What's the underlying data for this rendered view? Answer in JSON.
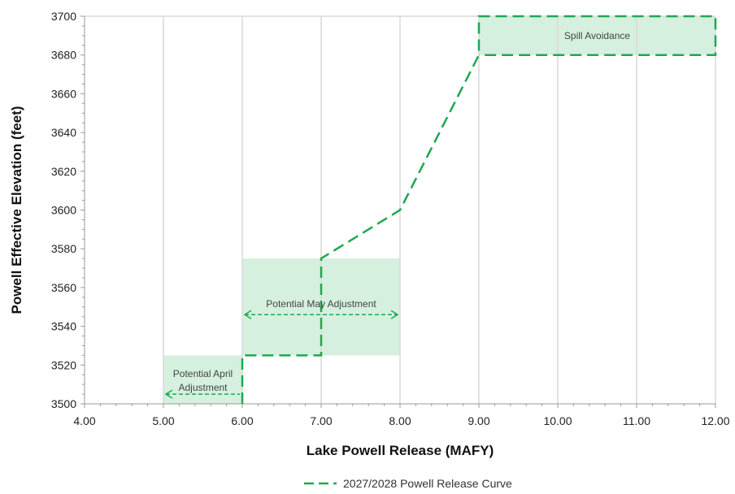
{
  "chart_data": {
    "type": "line",
    "xlabel": "Lake Powell Release (MAFY)",
    "ylabel": "Powell Effective Elevation (feet)",
    "xlim": [
      4,
      12
    ],
    "ylim": [
      3500,
      3700
    ],
    "x_ticks": [
      "4.00",
      "5.00",
      "6.00",
      "7.00",
      "8.00",
      "9.00",
      "10.00",
      "11.00",
      "12.00"
    ],
    "y_ticks": [
      "3500",
      "3520",
      "3540",
      "3560",
      "3580",
      "3600",
      "3620",
      "3640",
      "3660",
      "3680",
      "3700"
    ],
    "grid": "vertical",
    "series": [
      {
        "name": "2027/2028 Powell Release Curve",
        "style": "dashed",
        "color": "#1fa84f",
        "points": [
          [
            6.0,
            3500
          ],
          [
            6.0,
            3525
          ],
          [
            7.0,
            3525
          ],
          [
            7.0,
            3575
          ],
          [
            8.0,
            3600
          ],
          [
            9.0,
            3680
          ],
          [
            9.0,
            3700
          ],
          [
            12.0,
            3700
          ],
          [
            12.0,
            3680
          ],
          [
            9.0,
            3680
          ]
        ]
      }
    ],
    "regions": [
      {
        "label": "Potential April Adjustment",
        "x": [
          5.0,
          6.0
        ],
        "y": [
          3500,
          3525
        ]
      },
      {
        "label": "Potential May Adjustment",
        "x": [
          6.0,
          8.0
        ],
        "y": [
          3525,
          3575
        ]
      },
      {
        "label": "Spill Avoidance",
        "x": [
          9.0,
          12.0
        ],
        "y": [
          3680,
          3700
        ]
      }
    ],
    "arrows": [
      {
        "from": [
          6.0,
          3505
        ],
        "to": [
          5.0,
          3505
        ],
        "direction": "left"
      },
      {
        "from": [
          6.0,
          3546
        ],
        "to": [
          8.0,
          3546
        ],
        "direction": "both"
      }
    ],
    "legend_position": "bottom-center",
    "region_color": "#d5f0de",
    "line_color": "#1fa84f"
  }
}
